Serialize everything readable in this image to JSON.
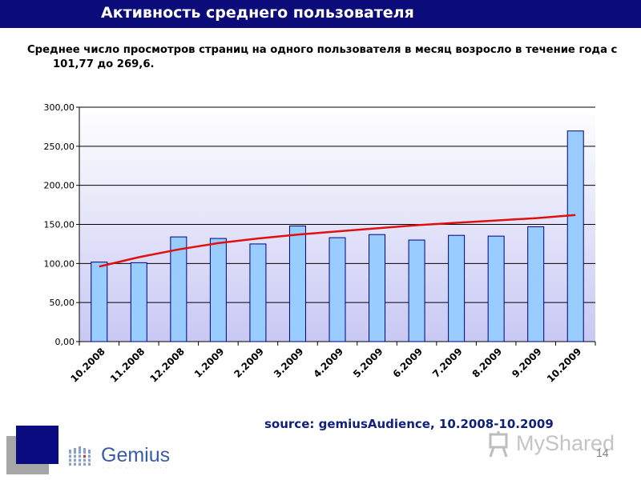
{
  "header": {
    "title": "Активность среднего пользователя",
    "subtitle": "Среднее число просмотров страниц на одного пользователя в месяц возросло в течение года с 101,77 до 269,6."
  },
  "chart_data": {
    "type": "bar",
    "title": "",
    "xlabel": "",
    "ylabel": "",
    "categories": [
      "10.2008",
      "11.2008",
      "12.2008",
      "1.2009",
      "2.2009",
      "3.2009",
      "4.2009",
      "5.2009",
      "6.2009",
      "7.2009",
      "8.2009",
      "9.2009",
      "10.2009"
    ],
    "series": [
      {
        "values": [
          101.77,
          101,
          134,
          132,
          125,
          148,
          133,
          137,
          130,
          136,
          135,
          147,
          269.6
        ]
      }
    ],
    "trend": {
      "type": "logarithmic",
      "values": [
        96,
        108,
        118,
        126,
        132,
        137,
        141,
        145,
        149,
        152,
        155,
        158,
        162
      ]
    },
    "y_ticks": [
      "0,00",
      "50,00",
      "100,00",
      "150,00",
      "200,00",
      "250,00",
      "300,00"
    ],
    "ylim": [
      0,
      300
    ],
    "grid": true,
    "legend": "none",
    "colors": {
      "bar_fill": "#99ccff",
      "bar_stroke": "#000080",
      "trend": "#e01010",
      "plot_bg_top": "#ffffff",
      "plot_bg_bottom": "#c8c8f4"
    }
  },
  "footer": {
    "source": "source: gemiusAudience, 10.2008-10.2009",
    "logo_text": "Gemius",
    "watermark": "MyShared",
    "page_number": "14"
  }
}
